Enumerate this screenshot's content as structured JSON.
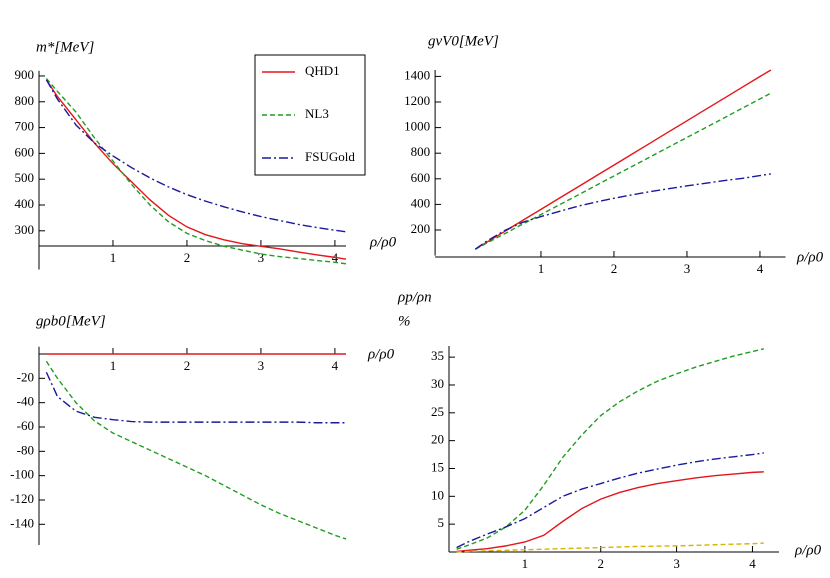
{
  "chart_data": [
    {
      "type": "line",
      "ylabel": [
        "m*[MeV]"
      ],
      "xlabel": "ρ/ρ0",
      "x": [
        0.1,
        0.25,
        0.5,
        0.75,
        1,
        1.25,
        1.5,
        1.75,
        2,
        2.25,
        2.5,
        2.75,
        3,
        3.25,
        3.5,
        3.75,
        4,
        4.15
      ],
      "xlim": [
        0,
        4.15
      ],
      "xticks": [
        1,
        2,
        3,
        4
      ],
      "ylim": [
        150,
        920
      ],
      "yticks": [
        300,
        400,
        500,
        600,
        700,
        800,
        900
      ],
      "legend": "upper right",
      "series": [
        {
          "name": "QHD1",
          "color": "#e3161b",
          "style": "solid",
          "values": [
            885,
            820,
            730,
            640,
            560,
            490,
            420,
            360,
            315,
            285,
            265,
            250,
            240,
            230,
            218,
            207,
            197,
            190
          ]
        },
        {
          "name": "NL3",
          "color": "#1f9e1f",
          "style": "dashed",
          "values": [
            890,
            840,
            760,
            660,
            570,
            480,
            400,
            335,
            290,
            262,
            240,
            225,
            210,
            200,
            193,
            185,
            178,
            172
          ]
        },
        {
          "name": "FSUGold",
          "color": "#1a1a9c",
          "style": "dashdot",
          "values": [
            885,
            810,
            710,
            640,
            590,
            545,
            505,
            470,
            440,
            415,
            393,
            373,
            355,
            340,
            325,
            313,
            302,
            296
          ]
        }
      ]
    },
    {
      "type": "line",
      "ylabel": [
        "gvV0[MeV]"
      ],
      "xlabel": "ρ/ρ0",
      "x": [
        0.1,
        0.25,
        0.5,
        0.75,
        1,
        1.25,
        1.5,
        1.75,
        2,
        2.25,
        2.5,
        2.75,
        3,
        3.25,
        3.5,
        3.75,
        4,
        4.15
      ],
      "xlim": [
        -0.45,
        4.35
      ],
      "xticks": [
        1,
        2,
        3,
        4
      ],
      "ylim": [
        0,
        1450
      ],
      "yticks": [
        200,
        400,
        600,
        800,
        1000,
        1200,
        1400
      ],
      "series": [
        {
          "color": "#e3161b",
          "style": "solid",
          "values": [
            50,
            102,
            188,
            275,
            361,
            448,
            534,
            621,
            707,
            794,
            880,
            967,
            1053,
            1140,
            1226,
            1313,
            1399,
            1450
          ]
        },
        {
          "color": "#1f9e1f",
          "style": "dashed",
          "values": [
            50,
            95,
            170,
            246,
            321,
            396,
            471,
            547,
            622,
            697,
            772,
            848,
            923,
            998,
            1073,
            1149,
            1224,
            1269
          ]
        },
        {
          "color": "#1a1a9c",
          "style": "dashdot",
          "values": [
            50,
            110,
            195,
            260,
            305,
            345,
            385,
            418,
            448,
            475,
            500,
            523,
            545,
            565,
            585,
            603,
            625,
            638
          ]
        }
      ]
    },
    {
      "type": "line",
      "ylabel": [
        "gρb0[MeV]"
      ],
      "xlabel": "ρ/ρ0",
      "x": [
        0.1,
        0.25,
        0.5,
        0.75,
        1,
        1.25,
        1.5,
        1.75,
        2,
        2.25,
        2.5,
        2.75,
        3,
        3.25,
        3.5,
        3.75,
        4,
        4.15
      ],
      "xlim": [
        0,
        4.15
      ],
      "xticks": [
        1,
        2,
        3,
        4
      ],
      "ylim": [
        -157,
        6
      ],
      "yticks": [
        -20,
        -40,
        -60,
        -80,
        -100,
        -120,
        -140
      ],
      "series": [
        {
          "color": "#e3161b",
          "style": "solid",
          "values": [
            0,
            0,
            0,
            0,
            0,
            0,
            0,
            0,
            0,
            0,
            0,
            0,
            0,
            0,
            0,
            0,
            0,
            0
          ]
        },
        {
          "color": "#1f9e1f",
          "style": "dashed",
          "values": [
            -6,
            -20,
            -40,
            -55,
            -65,
            -72,
            -79,
            -86,
            -93,
            -100,
            -108,
            -116,
            -124,
            -131,
            -137,
            -143,
            -149,
            -152
          ]
        },
        {
          "color": "#1a1a9c",
          "style": "dashdot",
          "values": [
            -15,
            -35,
            -47,
            -52,
            -54,
            -55.5,
            -56,
            -56,
            -56,
            -56,
            -56,
            -56,
            -56,
            -56,
            -56,
            -56.5,
            -56.5,
            -56.5
          ]
        }
      ]
    },
    {
      "type": "line",
      "ylabel": [
        "ρp/ρn",
        "%"
      ],
      "xlabel": "ρ/ρ0",
      "x": [
        0.1,
        0.25,
        0.5,
        0.75,
        1,
        1.25,
        1.5,
        1.75,
        2,
        2.25,
        2.5,
        2.75,
        3,
        3.25,
        3.5,
        3.75,
        4,
        4.15
      ],
      "xlim": [
        0,
        4.35
      ],
      "xticks": [
        1,
        2,
        3,
        4
      ],
      "ylim": [
        0,
        37
      ],
      "yticks": [
        5,
        10,
        15,
        20,
        25,
        30,
        35
      ],
      "series": [
        {
          "color": "#e3161b",
          "style": "solid",
          "values": [
            0.1,
            0.3,
            0.6,
            1.1,
            1.8,
            3,
            5.5,
            7.8,
            9.5,
            10.7,
            11.6,
            12.3,
            12.8,
            13.3,
            13.7,
            14,
            14.3,
            14.4
          ]
        },
        {
          "color": "#1f9e1f",
          "style": "dashed",
          "values": [
            0.5,
            1.2,
            2.5,
            4.5,
            7.5,
            12,
            17,
            21,
            24.5,
            27,
            29,
            30.7,
            32,
            33.2,
            34.2,
            35.2,
            36,
            36.5
          ]
        },
        {
          "color": "#1a1a9c",
          "style": "dashdot",
          "values": [
            0.8,
            1.8,
            3.2,
            4.5,
            6,
            8,
            10,
            11.3,
            12.3,
            13.3,
            14.2,
            14.9,
            15.6,
            16.2,
            16.7,
            17.1,
            17.5,
            17.8
          ]
        },
        {
          "color": "#d6b400",
          "style": "dashed",
          "values": [
            0,
            0.1,
            0.2,
            0.3,
            0.4,
            0.5,
            0.6,
            0.7,
            0.8,
            0.9,
            1,
            1.05,
            1.1,
            1.2,
            1.3,
            1.4,
            1.5,
            1.6
          ]
        }
      ]
    }
  ]
}
